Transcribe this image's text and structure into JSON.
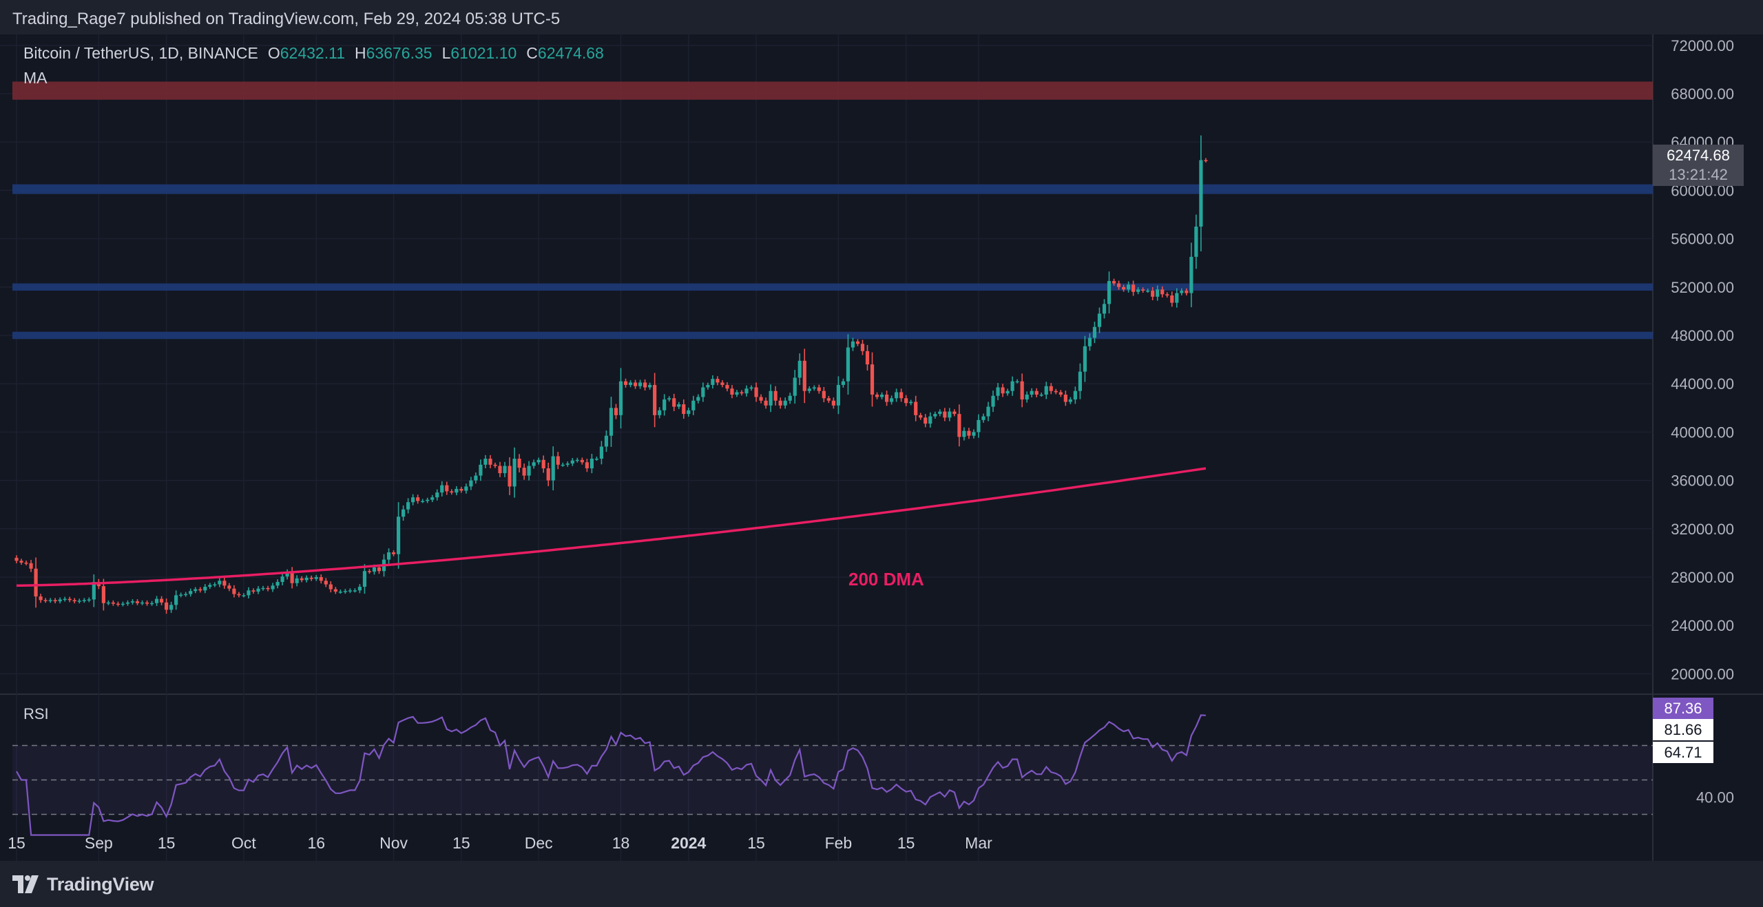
{
  "header": {
    "publisher": "Trading_Rage7 published on TradingView.com, Feb 29, 2024 05:38 UTC-5"
  },
  "legend": {
    "symbol": "Bitcoin / TetherUS, 1D, BINANCE",
    "open_label": "O",
    "open": "62432.11",
    "high_label": "H",
    "high": "63676.35",
    "low_label": "L",
    "low": "61021.10",
    "close_label": "C",
    "close": "62474.68",
    "indicator": "MA"
  },
  "price_label": {
    "price": "62474.68",
    "countdown": "13:21:42"
  },
  "annotation": "200 DMA",
  "rsi": {
    "label": "RSI",
    "value": "87.36",
    "band_upper": "81.66",
    "band_lower": "64.71",
    "level_40": "40.00"
  },
  "footer": {
    "brand": "TradingView"
  },
  "colors": {
    "up": "#26a69a",
    "down": "#ef5350",
    "ma": "#e91e63",
    "rsi": "#7e57c2",
    "support": "#1e3a78",
    "resistance": "#7a2a33"
  },
  "chart_data": {
    "type": "candlestick",
    "y_axis_ticks": [
      "72000.00",
      "68000.00",
      "64000.00",
      "60000.00",
      "56000.00",
      "52000.00",
      "48000.00",
      "44000.00",
      "40000.00",
      "36000.00",
      "32000.00",
      "28000.00",
      "24000.00",
      "20000.00"
    ],
    "ylim": [
      18200,
      72900
    ],
    "x_ticks": [
      {
        "label": "15",
        "day": 0
      },
      {
        "label": "Sep",
        "day": 17
      },
      {
        "label": "15",
        "day": 31
      },
      {
        "label": "Oct",
        "day": 47
      },
      {
        "label": "16",
        "day": 62
      },
      {
        "label": "Nov",
        "day": 78
      },
      {
        "label": "15",
        "day": 92
      },
      {
        "label": "Dec",
        "day": 108
      },
      {
        "label": "18",
        "day": 125
      },
      {
        "label": "2024",
        "day": 139,
        "bold": true
      },
      {
        "label": "15",
        "day": 153
      },
      {
        "label": "Feb",
        "day": 170
      },
      {
        "label": "15",
        "day": 184
      },
      {
        "label": "Mar",
        "day": 199
      }
    ],
    "zones": [
      {
        "type": "resistance",
        "from": 67500,
        "to": 69000
      },
      {
        "type": "support",
        "from": 59700,
        "to": 60500
      },
      {
        "type": "support",
        "from": 51700,
        "to": 52300
      },
      {
        "type": "support",
        "from": 47700,
        "to": 48300
      }
    ],
    "candles_note": "daily OHLC, day 0 = Aug 15 2023, close values estimated from chart",
    "closes": [
      29350,
      29200,
      29150,
      28700,
      26400,
      26100,
      26050,
      26100,
      26000,
      26150,
      26200,
      26100,
      26000,
      26050,
      26100,
      26150,
      27600,
      27250,
      25850,
      25900,
      25800,
      25750,
      25800,
      25900,
      26000,
      25850,
      25900,
      25800,
      25850,
      26200,
      25900,
      25300,
      25700,
      26500,
      26550,
      26600,
      26850,
      27000,
      26900,
      27200,
      27350,
      27400,
      27700,
      27300,
      27050,
      26600,
      26500,
      26500,
      26900,
      26800,
      27050,
      27100,
      27000,
      27300,
      27600,
      28050,
      28400,
      27500,
      27900,
      27750,
      27950,
      27850,
      28000,
      27700,
      27400,
      27000,
      26800,
      26800,
      26850,
      26900,
      26900,
      27200,
      28500,
      28450,
      28800,
      28500,
      29450,
      30050,
      29900,
      33000,
      33600,
      34200,
      34600,
      34300,
      34300,
      34400,
      34600,
      35000,
      35600,
      35100,
      35000,
      35300,
      35150,
      35500,
      36000,
      36400,
      37300,
      37800,
      37300,
      37200,
      36600,
      37200,
      35500,
      37800,
      37050,
      36400,
      37200,
      37500,
      37700,
      37000,
      36000,
      38000,
      37300,
      37300,
      37400,
      37650,
      37700,
      37500,
      37000,
      37800,
      37800,
      38800,
      39700,
      42000,
      41400,
      44200,
      43900,
      44100,
      43800,
      44100,
      43700,
      43900,
      41400,
      41800,
      42700,
      42800,
      42100,
      42300,
      41500,
      41800,
      42600,
      42900,
      43700,
      43900,
      44400,
      44100,
      43900,
      43600,
      43100,
      43300,
      43200,
      43600,
      43700,
      42900,
      42600,
      42200,
      43400,
      42600,
      42200,
      42600,
      43000,
      44500,
      45900,
      43400,
      43600,
      43700,
      43400,
      42800,
      42600,
      42200,
      43900,
      44200,
      47000,
      47500,
      47300,
      46700,
      45600,
      43100,
      42900,
      43100,
      42500,
      42800,
      43300,
      42800,
      42400,
      42500,
      41400,
      41200,
      40700,
      41300,
      41500,
      41700,
      41200,
      41700,
      41500,
      39600,
      40100,
      39700,
      40000,
      41000,
      41300,
      42100,
      43000,
      43700,
      43200,
      43400,
      44200,
      44200,
      42700,
      43100,
      43400,
      43100,
      43100,
      43800,
      43400,
      43300,
      43100,
      42500,
      42700,
      43400,
      45000,
      47100,
      47800,
      48700,
      49800,
      50600,
      52500,
      52300,
      52000,
      51800,
      52200,
      51600,
      51800,
      51700,
      51700,
      51200,
      51800,
      51400,
      51300,
      50700,
      51500,
      51700,
      51500,
      54500,
      57000,
      62500,
      62474.68
    ],
    "ma200_end": 37000,
    "rsi_bands": {
      "upper": 70,
      "middle": 50,
      "lower": 30
    }
  }
}
